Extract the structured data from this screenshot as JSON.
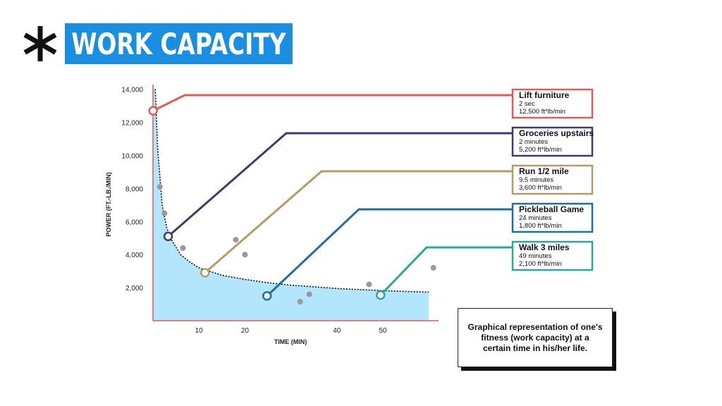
{
  "header": {
    "title": "WORK CAPACITY",
    "logo_icon": "asterisk-icon"
  },
  "caption": "Graphical representation of one's fitness (work capacity) at a certain time in his/her life.",
  "colors": {
    "title_bg": "#1a8ee0",
    "curve_fill": "#b3e5fc",
    "axis": "#e05a5a",
    "lift": "#e05a5a",
    "groceries": "#3d3d6b",
    "run": "#b59a6a",
    "pickleball": "#1a6fa0",
    "walk": "#2aa89a",
    "scatter": "#999999"
  },
  "chart_data": {
    "type": "line",
    "title": "",
    "xlabel": "TIME (MIN)",
    "ylabel": "POWER (FT.-LB./MIN)",
    "xlim": [
      0,
      60
    ],
    "ylim": [
      0,
      14000
    ],
    "xticks": [
      10,
      20,
      40,
      50
    ],
    "xtick_labels": [
      "10",
      "20",
      "40",
      "50"
    ],
    "yticks": [
      2000,
      4000,
      6000,
      8000,
      10000,
      12000,
      14000
    ],
    "ytick_labels": [
      "2,000",
      "4,000",
      "6,000",
      "8,000",
      "10,000",
      "12,000",
      "14,000"
    ],
    "curve": {
      "name": "work capacity curve",
      "x": [
        0.5,
        1,
        2,
        3,
        4,
        6,
        8,
        10,
        15,
        20,
        25,
        30,
        35,
        40,
        45,
        50,
        55,
        60
      ],
      "y": [
        14000,
        10500,
        7000,
        5600,
        4900,
        4000,
        3550,
        3200,
        2750,
        2500,
        2300,
        2150,
        2050,
        1950,
        1880,
        1820,
        1770,
        1730
      ]
    },
    "scatter": {
      "x": [
        1.5,
        2.5,
        6.5,
        18,
        20,
        32,
        34,
        47,
        61
      ],
      "y": [
        8100,
        6500,
        4400,
        4900,
        4000,
        1150,
        1600,
        2200,
        3200
      ]
    },
    "activities": [
      {
        "key": "lift",
        "title": "Lift furniture",
        "duration": "2 sec",
        "power": "12,500 ft*lb/min",
        "time": 0.03,
        "value": 12700
      },
      {
        "key": "groceries",
        "title": "Groceries upstairs",
        "duration": "2 minutes",
        "power": "5,200 ft*lb/min",
        "time": 3.3,
        "value": 5100
      },
      {
        "key": "run",
        "title": "Run 1/2 mile",
        "duration": "9.5 minutes",
        "power": "3,600 ft*lb/min",
        "time": 11.3,
        "value": 2900
      },
      {
        "key": "pickleball",
        "title": "Pickleball Game",
        "duration": "24 minutes",
        "power": "1,800 ft*lb/min",
        "time": 24.8,
        "value": 1500
      },
      {
        "key": "walk",
        "title": "Walk 3 miles",
        "duration": "49 minutes",
        "power": "2,100 ft*lb/min",
        "time": 49.5,
        "value": 1550
      }
    ]
  }
}
